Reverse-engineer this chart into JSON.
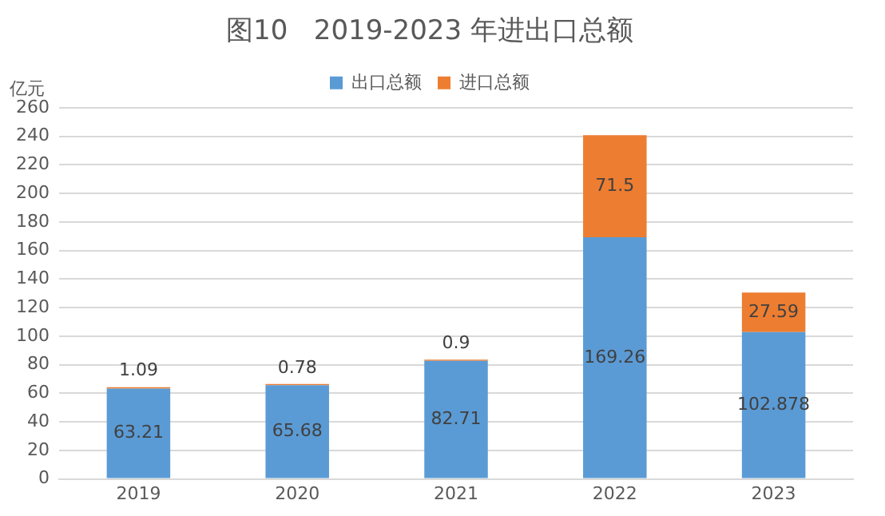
{
  "chart_data": {
    "type": "bar",
    "title": "图10   2019-2023 年进出口总额",
    "ylabel": "亿元",
    "stacked": true,
    "categories": [
      "2019",
      "2020",
      "2021",
      "2022",
      "2023"
    ],
    "series": [
      {
        "name": "出口总额",
        "color": "#5b9bd5",
        "values": [
          63.21,
          65.68,
          82.71,
          169.26,
          102.878
        ]
      },
      {
        "name": "进口总额",
        "color": "#ed7d31",
        "values": [
          1.09,
          0.78,
          0.9,
          71.5,
          27.59
        ]
      }
    ],
    "ylim": [
      0,
      260
    ],
    "yticks": [
      0,
      20,
      40,
      60,
      80,
      100,
      120,
      140,
      160,
      180,
      200,
      220,
      240,
      260
    ],
    "grid": "y",
    "legend": "top",
    "data_labels": true
  }
}
